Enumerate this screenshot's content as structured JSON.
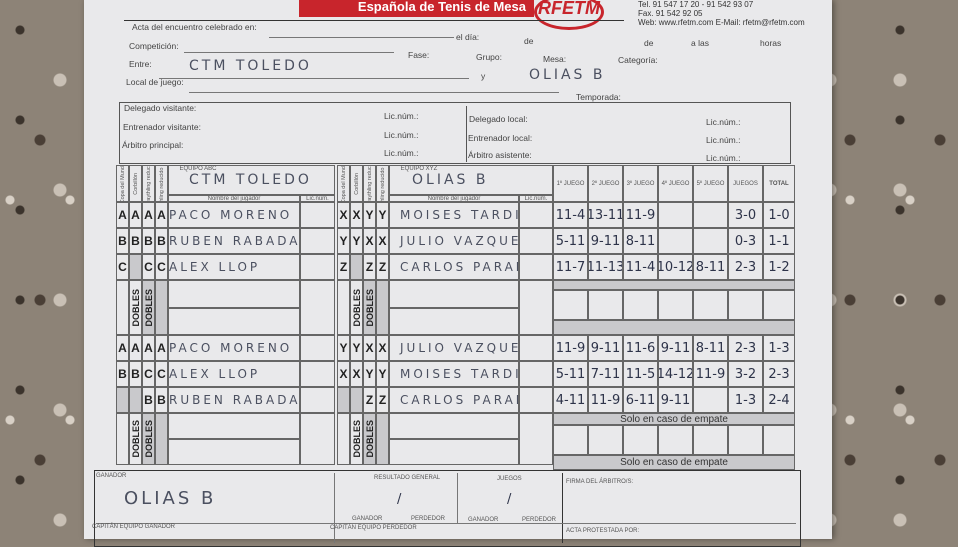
{
  "header": {
    "federation": "Española de Tenis de Mesa",
    "logo": "RFETM",
    "phone": "Tel. 91 547 17 20 - 91 542 93 07",
    "fax": "Fax. 91 542 92 05",
    "web": "Web: www.rfetm.com E-Mail: rfetm@rfetm.com"
  },
  "form": {
    "acta_label": "Acta del encuentro celebrado en:",
    "dia_label": "el día:",
    "de1_label": "de",
    "de2_label": "de",
    "alas_label": "a las",
    "horas_label": "horas",
    "competicion_label": "Competición:",
    "fase_label": "Fase:",
    "grupo_label": "Grupo:",
    "mesa_label": "Mesa:",
    "categoria_label": "Categoría:",
    "entre_label": "Entre:",
    "team_local": "CTM TOLEDO",
    "y_label": "y",
    "team_visitor": "OLIAS B",
    "local_label": "Local de juego:",
    "temporada_label": "Temporada:"
  },
  "officials": {
    "delegado_visitante": "Delegado visitante:",
    "entrenador_visitante": "Entrenador visitante:",
    "arbitro_principal": "Árbitro principal:",
    "delegado_local": "Delegado local:",
    "entrenador_local": "Entrenador local:",
    "arbitro_asistente": "Árbitro asistente:",
    "lic": "Lic.núm.:"
  },
  "table": {
    "col_heads": [
      "Copa del Mundo",
      "Corbillón",
      "Swaythling reducido",
      "Swaythling reducido modif."
    ],
    "equipo_abc": "EQUIPO ABC",
    "equipo_xyz": "EQUIPO XYZ",
    "team_abc": "CTM TOLEDO",
    "team_xyz": "OLIAS B",
    "nombre": "Nombre del jugador",
    "lic": "Lic.núm.",
    "games": [
      "1º JUEGO",
      "2º JUEGO",
      "3º JUEGO",
      "4º JUEGO",
      "5º JUEGO"
    ],
    "juegos": "JUEGOS",
    "total": "TOTAL",
    "dobles": "DOBLES",
    "empate": "Solo en caso de empate",
    "block1": [
      {
        "l": [
          "A",
          "A",
          "A",
          "A"
        ],
        "name": "PACO MORENO",
        "r": [
          "X",
          "X",
          "Y",
          "Y"
        ],
        "rname": "MOISES TARDIO",
        "scores": [
          "11-4",
          "13-11",
          "11-9",
          "",
          ""
        ],
        "juegos": "3-0",
        "total": "1-0"
      },
      {
        "l": [
          "B",
          "B",
          "B",
          "B"
        ],
        "name": "RUBEN RABADAN",
        "r": [
          "Y",
          "Y",
          "X",
          "X"
        ],
        "rname": "JULIO VAZQUEZ",
        "scores": [
          "5-11",
          "9-11",
          "8-11",
          "",
          ""
        ],
        "juegos": "0-3",
        "total": "1-1"
      },
      {
        "l": [
          "C",
          "",
          "C",
          "C"
        ],
        "name": "ALEX LLOP",
        "r": [
          "Z",
          "",
          "Z",
          "Z"
        ],
        "rname": "CARLOS PARAMO",
        "scores": [
          "11-7",
          "11-13",
          "11-4",
          "10-12",
          "8-11"
        ],
        "juegos": "2-3",
        "total": "1-2"
      }
    ],
    "block2": [
      {
        "l": [
          "A",
          "A",
          "A",
          "A"
        ],
        "name": "PACO MORENO",
        "r": [
          "Y",
          "Y",
          "X",
          "X"
        ],
        "rname": "JULIO VAZQUEZ",
        "scores": [
          "11-9",
          "9-11",
          "11-6",
          "9-11",
          "8-11"
        ],
        "juegos": "2-3",
        "total": "1-3"
      },
      {
        "l": [
          "B",
          "B",
          "C",
          "C"
        ],
        "name": "ALEX LLOP",
        "r": [
          "X",
          "X",
          "Y",
          "Y"
        ],
        "rname": "MOISES TARDIO",
        "scores": [
          "5-11",
          "7-11",
          "11-5",
          "14-12",
          "11-9"
        ],
        "juegos": "3-2",
        "total": "2-3"
      },
      {
        "l": [
          "",
          "",
          "B",
          "B"
        ],
        "name": "RUBEN RABADAN",
        "r": [
          "",
          "",
          "Z",
          "Z"
        ],
        "rname": "CARLOS PARAMO",
        "scores": [
          "4-11",
          "11-9",
          "6-11",
          "9-11",
          ""
        ],
        "juegos": "1-3",
        "total": "2-4"
      }
    ]
  },
  "footer": {
    "ganador_label": "GANADOR",
    "ganador": "OLIAS B",
    "resultado_label": "RESULTADO GENERAL",
    "juegos_label": "JUEGOS",
    "ganador_sub": "GANADOR",
    "perdedor_sub": "PERDEDOR",
    "slash": "/",
    "firma_label": "FIRMA DEL ÁRBITRO/S:",
    "capitan_ganador": "CAPITÁN EQUIPO GANADOR",
    "capitan_perdedor": "CAPITÁN EQUIPO PERDEDOR",
    "acta_protestada": "ACTA PROTESTADA POR:"
  }
}
